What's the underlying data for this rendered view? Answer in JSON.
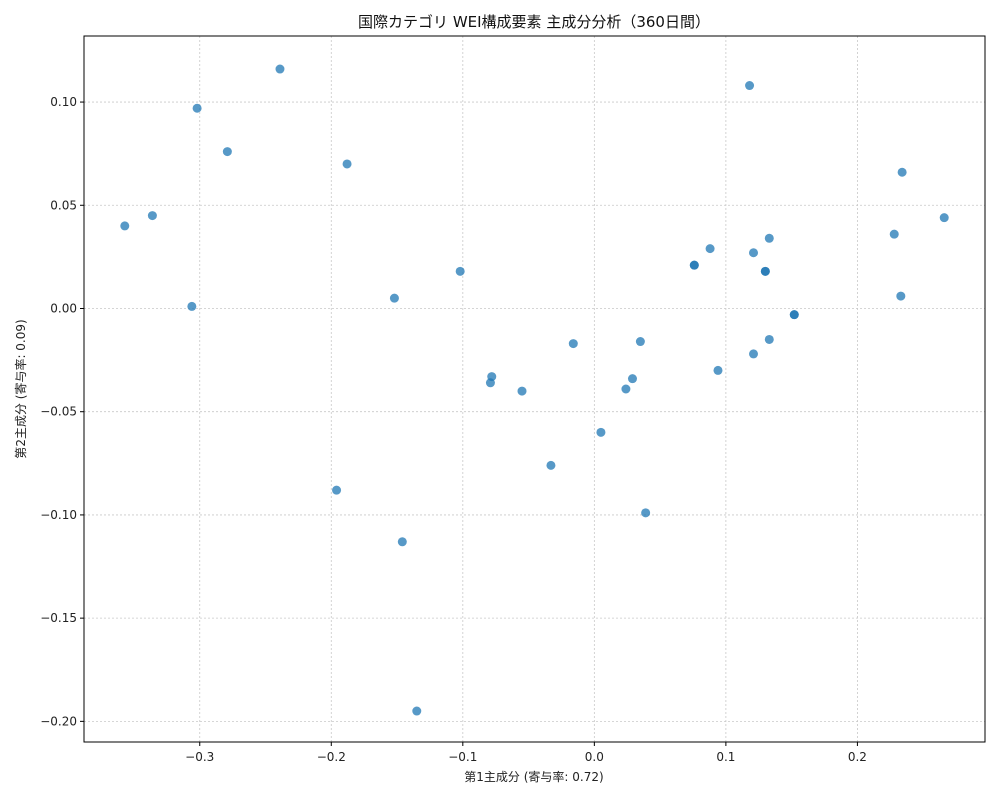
{
  "chart_data": {
    "type": "scatter",
    "title": "国際カテゴリ WEI構成要素 主成分分析（360日間）",
    "xlabel": "第1主成分 (寄与率: 0.72)",
    "ylabel": "第2主成分 (寄与率: 0.09)",
    "xlim": [
      -0.388,
      0.297
    ],
    "ylim": [
      -0.21,
      0.132
    ],
    "xticks": [
      -0.3,
      -0.2,
      -0.1,
      0.0,
      0.1,
      0.2
    ],
    "xtick_labels": [
      "−0.3",
      "−0.2",
      "−0.1",
      "0.0",
      "0.1",
      "0.2"
    ],
    "yticks": [
      -0.2,
      -0.15,
      -0.1,
      -0.05,
      0.0,
      0.05,
      0.1
    ],
    "ytick_labels": [
      "−0.20",
      "−0.15",
      "−0.10",
      "−0.05",
      "0.00",
      "0.05",
      "0.10"
    ],
    "grid": true,
    "marker_color": "#1f77b4",
    "points": [
      {
        "x": -0.239,
        "y": 0.116
      },
      {
        "x": -0.302,
        "y": 0.097
      },
      {
        "x": -0.279,
        "y": 0.076
      },
      {
        "x": -0.188,
        "y": 0.07
      },
      {
        "x": -0.357,
        "y": 0.04
      },
      {
        "x": -0.336,
        "y": 0.045
      },
      {
        "x": -0.306,
        "y": 0.001
      },
      {
        "x": -0.102,
        "y": 0.018
      },
      {
        "x": -0.152,
        "y": 0.005
      },
      {
        "x": 0.118,
        "y": 0.108
      },
      {
        "x": 0.234,
        "y": 0.066
      },
      {
        "x": 0.266,
        "y": 0.044
      },
      {
        "x": 0.228,
        "y": 0.036
      },
      {
        "x": 0.233,
        "y": 0.006
      },
      {
        "x": 0.133,
        "y": 0.034
      },
      {
        "x": 0.088,
        "y": 0.029
      },
      {
        "x": 0.121,
        "y": 0.027
      },
      {
        "x": 0.076,
        "y": 0.021
      },
      {
        "x": 0.076,
        "y": 0.021
      },
      {
        "x": 0.13,
        "y": 0.018
      },
      {
        "x": 0.13,
        "y": 0.018
      },
      {
        "x": 0.152,
        "y": -0.003
      },
      {
        "x": 0.152,
        "y": -0.003
      },
      {
        "x": 0.133,
        "y": -0.015
      },
      {
        "x": 0.121,
        "y": -0.022
      },
      {
        "x": 0.035,
        "y": -0.016
      },
      {
        "x": -0.016,
        "y": -0.017
      },
      {
        "x": 0.094,
        "y": -0.03
      },
      {
        "x": 0.029,
        "y": -0.034
      },
      {
        "x": 0.024,
        "y": -0.039
      },
      {
        "x": -0.078,
        "y": -0.033
      },
      {
        "x": -0.079,
        "y": -0.036
      },
      {
        "x": -0.055,
        "y": -0.04
      },
      {
        "x": 0.005,
        "y": -0.06
      },
      {
        "x": -0.033,
        "y": -0.076
      },
      {
        "x": 0.039,
        "y": -0.099
      },
      {
        "x": -0.196,
        "y": -0.088
      },
      {
        "x": -0.146,
        "y": -0.113
      },
      {
        "x": -0.135,
        "y": -0.195
      }
    ]
  }
}
